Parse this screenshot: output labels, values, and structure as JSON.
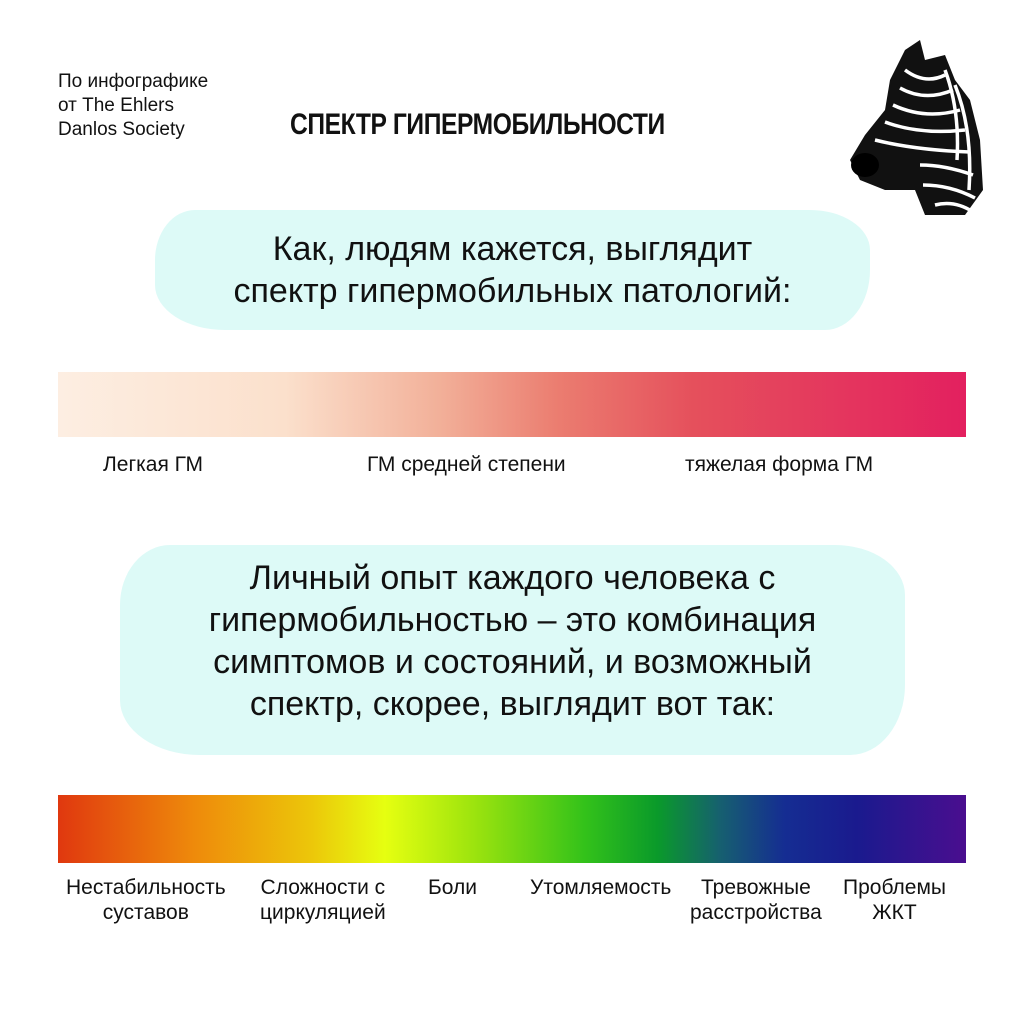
{
  "credit": {
    "lines": [
      "По инфографике",
      "от The Ehlers",
      "Danlos Society"
    ]
  },
  "title": "СПЕКТР ГИПЕРМОБИЛЬНОСТИ",
  "logo": {
    "icon": "zebra-head"
  },
  "perceived": {
    "heading_lines": [
      "Как, людям кажется, выглядит",
      "спектр гипермобильных патологий:"
    ],
    "gradient_colors": [
      "#fdeee2",
      "#f2b099",
      "#e5505c",
      "#e3205f"
    ],
    "labels": [
      "Легкая ГМ",
      "ГМ средней степени",
      "тяжелая форма ГМ"
    ]
  },
  "actual": {
    "heading_lines": [
      "Личный опыт каждого человека с",
      "гипермобильностью – это комбинация",
      "симптомов и состояний, и возможный",
      "спектр, скорее, выглядит вот так:"
    ],
    "gradient_colors": [
      "#e0380f",
      "#ecc70a",
      "#e6ff10",
      "#0a9a2a",
      "#152d92",
      "#4a0e8f"
    ],
    "labels": [
      [
        "Нестабильность",
        "суставов"
      ],
      [
        "Сложности с",
        "циркуляцией"
      ],
      [
        "Боли"
      ],
      [
        "Утомляемость"
      ],
      [
        "Тревожные",
        "расстройства"
      ],
      [
        "Проблемы",
        "ЖКТ"
      ]
    ]
  }
}
